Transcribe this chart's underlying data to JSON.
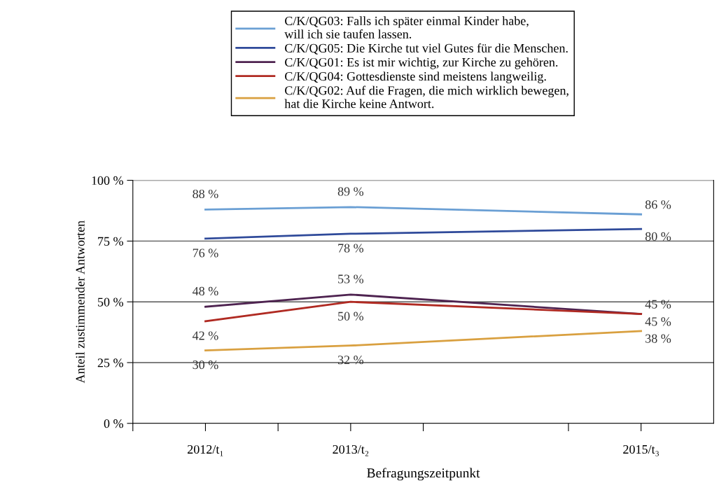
{
  "chart_data": {
    "type": "line",
    "xlabel": "Befragungszeitpunkt",
    "ylabel": "Anteil zustimmender Antworten",
    "x": [
      2012,
      2013,
      2015
    ],
    "xlim": [
      2011.5,
      2015.5
    ],
    "xticks": [
      {
        "value": 2011.5,
        "label": null
      },
      {
        "value": 2012,
        "label": "2012/t₁"
      },
      {
        "value": 2012.5,
        "label": null
      },
      {
        "value": 2013,
        "label": "2013/t₂"
      },
      {
        "value": 2013.5,
        "label": null
      },
      {
        "value": 2014.5,
        "label": null
      },
      {
        "value": 2015,
        "label": "2015/t₃"
      }
    ],
    "ylim": [
      0,
      100
    ],
    "yticks": [
      {
        "value": 0,
        "label": "0 %"
      },
      {
        "value": 25,
        "label": "25 %"
      },
      {
        "value": 50,
        "label": "50 %"
      },
      {
        "value": 75,
        "label": "75 %"
      },
      {
        "value": 100,
        "label": "100 %"
      }
    ],
    "grid": "y",
    "legend": "top",
    "marker": "none",
    "line_style": "solid",
    "series": [
      {
        "name": "C/K/QG03: Falls ich später einmal Kinder habe,\nwill ich sie taufen lassen.",
        "color": "#6a9fd4",
        "values": [
          88,
          89,
          86
        ],
        "value_labels": [
          "88 %",
          "89 %",
          "86 %"
        ]
      },
      {
        "name": "C/K/QG05: Die Kirche tut viel Gutes für die Menschen.",
        "color": "#2f4a9a",
        "values": [
          76,
          78,
          80
        ],
        "value_labels": [
          "76 %",
          "78 %",
          "80 %"
        ]
      },
      {
        "name": "C/K/QG01: Es ist mir wichtig, zur Kirche zu gehören.",
        "color": "#4e2350",
        "values": [
          48,
          53,
          45
        ],
        "value_labels": [
          "48 %",
          "53 %",
          "45 %"
        ]
      },
      {
        "name": "C/K/QG04: Gottesdienste sind meistens langweilig.",
        "color": "#b02a22",
        "values": [
          42,
          50,
          45
        ],
        "value_labels": [
          "42 %",
          "50 %",
          "45 %"
        ]
      },
      {
        "name": "C/K/QG02: Auf die Fragen, die mich wirklich bewegen,\nhat die Kirche keine Antwort.",
        "color": "#d9a040",
        "values": [
          30,
          32,
          38
        ],
        "value_labels": [
          "30 %",
          "32 %",
          "38 %"
        ]
      }
    ]
  }
}
